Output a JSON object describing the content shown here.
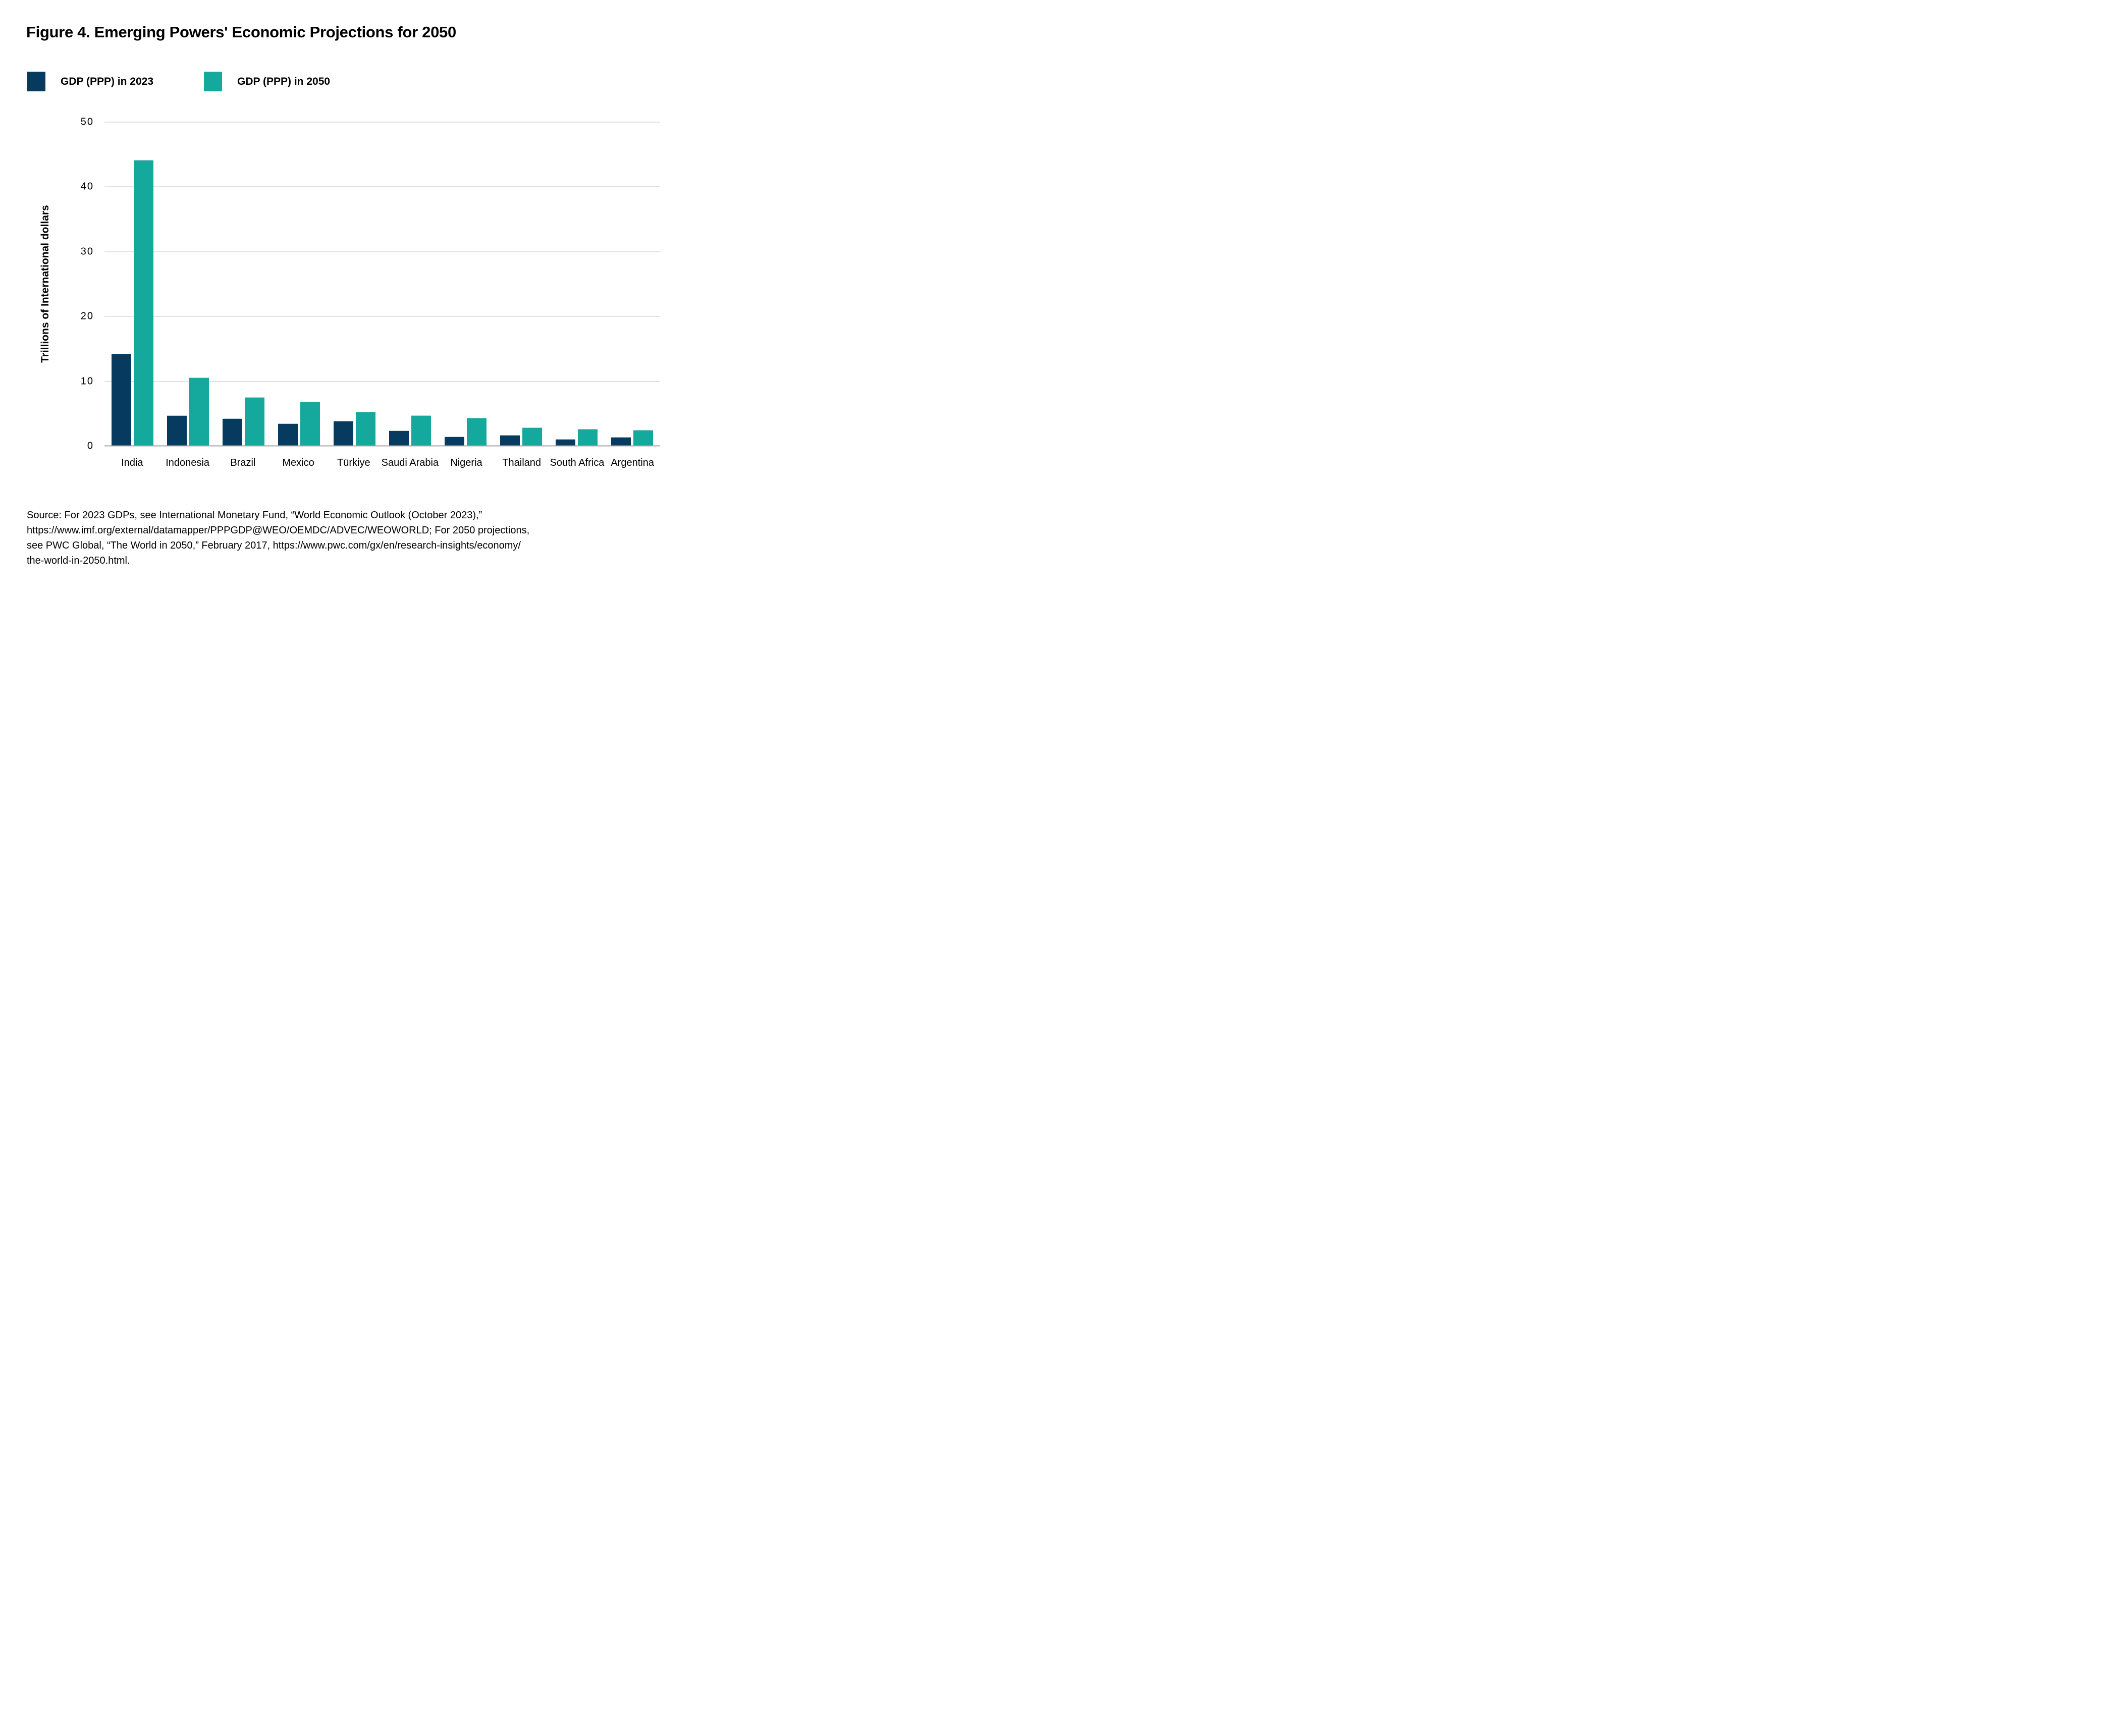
{
  "figure": {
    "title": "Figure 4. Emerging Powers' Economic Projections for 2050"
  },
  "legend": [
    {
      "label": "GDP (PPP) in 2023",
      "color": "#073a5f"
    },
    {
      "label": "GDP (PPP) in 2050",
      "color": "#15a89c"
    }
  ],
  "chart_data": {
    "type": "bar",
    "title": "Figure 4. Emerging Powers' Economic Projections for 2050",
    "categories": [
      "India",
      "Indonesia",
      "Brazil",
      "Mexico",
      "Türkiye",
      "Saudi Arabia",
      "Nigeria",
      "Thailand",
      "South Africa",
      "Argentina"
    ],
    "series": [
      {
        "name": "GDP (PPP) in 2023",
        "color": "#073a5f",
        "values": [
          14.2,
          4.7,
          4.2,
          3.4,
          3.8,
          2.3,
          1.4,
          1.6,
          1.0,
          1.3
        ]
      },
      {
        "name": "GDP (PPP) in 2050",
        "color": "#15a89c",
        "values": [
          44.1,
          10.5,
          7.5,
          6.8,
          5.2,
          4.7,
          4.3,
          2.8,
          2.6,
          2.4
        ]
      }
    ],
    "xlabel": "",
    "ylabel": "Trillions of International dollars",
    "ylim": [
      0,
      50
    ],
    "yticks": [
      0,
      10,
      20,
      30,
      40,
      50
    ],
    "grid": "horizontal",
    "legend_position": "top-left"
  },
  "colors": {
    "navy": "#073a5f",
    "teal": "#15a89c",
    "gridline": "#c5c5c5",
    "axis_line": "#a3a3a3",
    "text": "#000000"
  },
  "source": {
    "lines": [
      "Source: For 2023 GDPs, see International Monetary Fund, “World Economic Outlook (October 2023),”",
      "https://www.imf.org/external/datamapper/PPPGDP@WEO/OEMDC/ADVEC/WEOWORLD; For 2050 projections,",
      "see PWC Global, “The World in 2050,” February 2017, https://www.pwc.com/gx/en/research-insights/economy/",
      "the-world-in-2050.html."
    ]
  }
}
